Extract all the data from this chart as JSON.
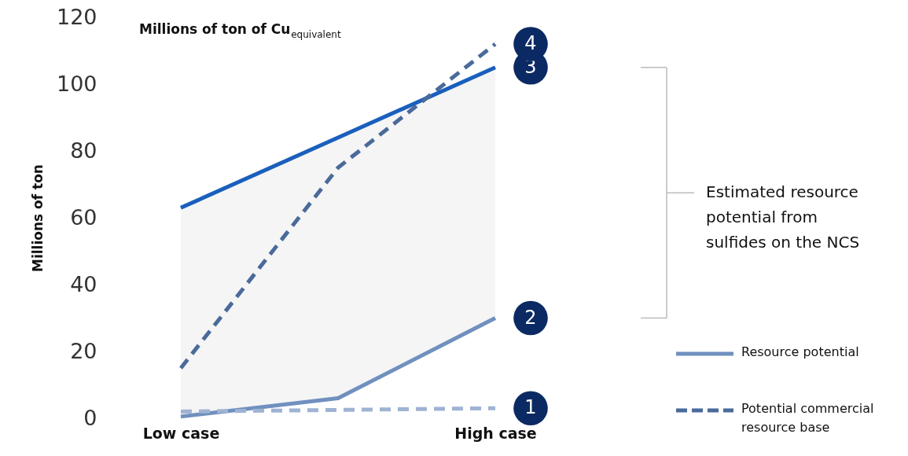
{
  "chart_data": {
    "type": "line",
    "title": "Millions of ton of Cu$_{equivalent}$",
    "ylabel": "Millions of ton",
    "categories": [
      "Low case",
      null,
      "High case"
    ],
    "series": [
      {
        "color": "#1a5fbd",
        "values": [
          63,
          84,
          105
        ],
        "line_style": "solid",
        "lower": [
          0.5,
          6,
          30
        ],
        "upper": [
          63,
          84,
          105
        ]
      },
      {
        "name": "Resource potential",
        "color": "#7090bf",
        "values": [
          0.5,
          6,
          30
        ],
        "line_style": "solid"
      },
      {
        "name": "Potential commercial resource base",
        "color": "#4a6a9a",
        "values": [
          15,
          75,
          112
        ],
        "line_style": "dashed"
      },
      {
        "color": "#9fb3d3",
        "values": [
          2,
          2.5,
          3
        ],
        "line_style": "dashed"
      }
    ],
    "ylim": [
      0,
      120
    ],
    "yticks": [
      0,
      20,
      40,
      60,
      80,
      100,
      120
    ],
    "grid": false,
    "legend": "bottom right",
    "annotations": [
      {
        "text": "1",
        "x": "High case",
        "y": 3
      },
      {
        "text": "2",
        "x": "High case",
        "y": 30
      },
      {
        "text": "3",
        "x": "High case",
        "y": 105
      },
      {
        "text": "4",
        "x": "High case",
        "y": 112
      },
      "Estimated resource potential from sulfides on the NCS"
    ]
  }
}
